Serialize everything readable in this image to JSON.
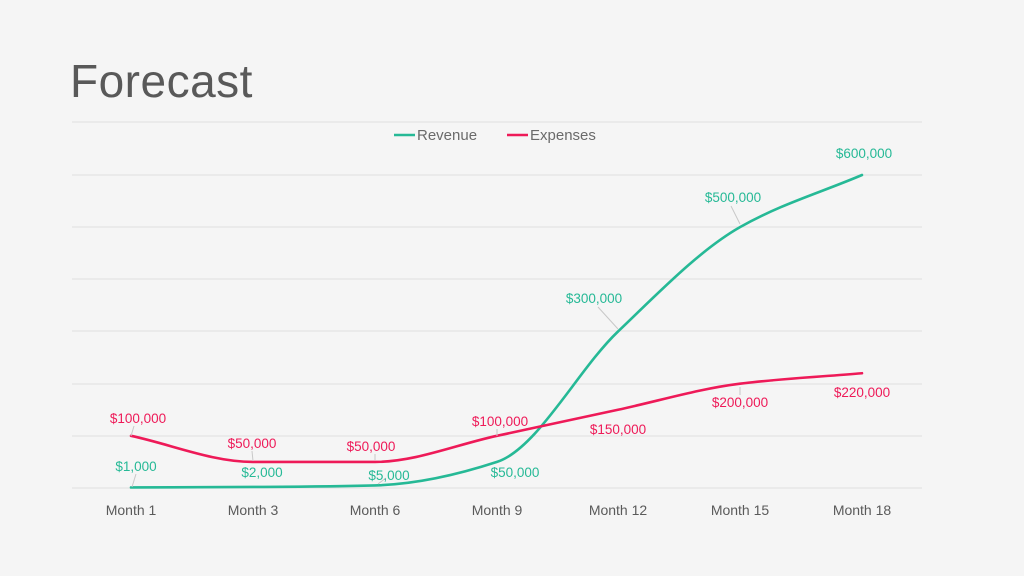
{
  "title": "Forecast",
  "colors": {
    "revenue": "#26b996",
    "expenses": "#ee1a58",
    "grid": "#dedede"
  },
  "chart_data": {
    "type": "line",
    "title": "Forecast",
    "categories": [
      "Month 1",
      "Month 3",
      "Month 6",
      "Month 9",
      "Month 12",
      "Month 15",
      "Month 18"
    ],
    "series": [
      {
        "name": "Revenue",
        "color": "#26b996",
        "values": [
          1000,
          2000,
          5000,
          50000,
          300000,
          500000,
          600000
        ],
        "labels": [
          "$1,000",
          "$2,000",
          "$5,000",
          "$50,000",
          "$300,000",
          "$500,000",
          "$600,000"
        ]
      },
      {
        "name": "Expenses",
        "color": "#ee1a58",
        "values": [
          100000,
          50000,
          50000,
          100000,
          150000,
          200000,
          220000
        ],
        "labels": [
          "$100,000",
          "$50,000",
          "$50,000",
          "$100,000",
          "$150,000",
          "$200,000",
          "$220,000"
        ]
      }
    ],
    "ylim": [
      0,
      600000
    ],
    "grid": true,
    "legend": "top-center",
    "smooth": true
  }
}
